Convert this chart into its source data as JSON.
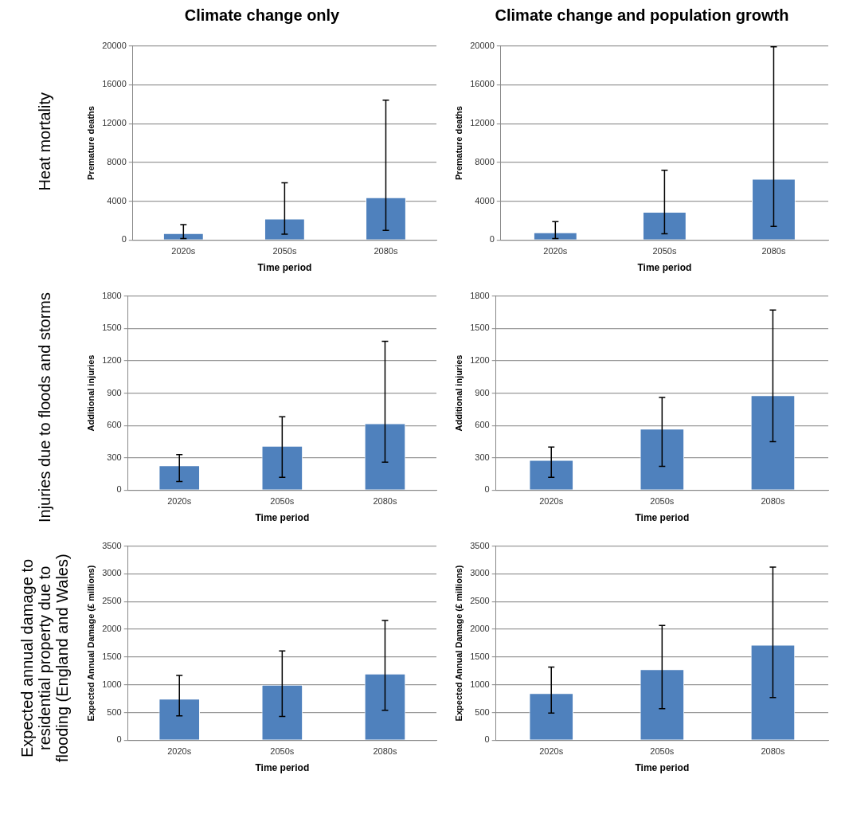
{
  "chart_data": [
    {
      "type": "bar",
      "title": "Climate change only",
      "annotations": [
        "Heat mortality"
      ],
      "xlabel": "Time period",
      "ylabel": "Premature deaths",
      "categories": [
        "2020s",
        "2050s",
        "2080s"
      ],
      "values": [
        700,
        2200,
        4400
      ],
      "errors": [
        [
          150,
          1600
        ],
        [
          600,
          5900
        ],
        [
          1000,
          14400
        ]
      ],
      "color": "#4f81bd",
      "ylim": [
        0,
        20000
      ],
      "yticks": [
        0,
        4000,
        8000,
        12000,
        16000,
        20000
      ],
      "grid": "y",
      "legend": false
    },
    {
      "type": "bar",
      "title": "Climate change and population growth",
      "xlabel": "Time period",
      "ylabel": "Premature deaths",
      "categories": [
        "2020s",
        "2050s",
        "2080s"
      ],
      "values": [
        800,
        2900,
        6300
      ],
      "errors": [
        [
          150,
          1900
        ],
        [
          650,
          7200
        ],
        [
          1400,
          19900
        ]
      ],
      "color": "#4f81bd",
      "ylim": [
        0,
        20000
      ],
      "yticks": [
        0,
        4000,
        8000,
        12000,
        16000,
        20000
      ],
      "grid": "y",
      "legend": false
    },
    {
      "type": "bar",
      "annotations": [
        "Injuries due to floods and storms"
      ],
      "xlabel": "Time period",
      "ylabel": "Additional injuries",
      "categories": [
        "2020s",
        "2050s",
        "2080s"
      ],
      "values": [
        230,
        410,
        620
      ],
      "errors": [
        [
          80,
          330
        ],
        [
          120,
          680
        ],
        [
          260,
          1380
        ]
      ],
      "color": "#4f81bd",
      "ylim": [
        0,
        1800
      ],
      "yticks": [
        0,
        300,
        600,
        900,
        1200,
        1500,
        1800
      ],
      "grid": "y",
      "legend": false
    },
    {
      "type": "bar",
      "xlabel": "Time period",
      "ylabel": "Additional injuries",
      "categories": [
        "2020s",
        "2050s",
        "2080s"
      ],
      "values": [
        280,
        570,
        880
      ],
      "errors": [
        [
          120,
          400
        ],
        [
          220,
          860
        ],
        [
          450,
          1670
        ]
      ],
      "color": "#4f81bd",
      "ylim": [
        0,
        1800
      ],
      "yticks": [
        0,
        300,
        600,
        900,
        1200,
        1500,
        1800
      ],
      "grid": "y",
      "legend": false
    },
    {
      "type": "bar",
      "annotations": [
        "Expected annual damage to residential property due to flooding (England and Wales)"
      ],
      "xlabel": "Time period",
      "ylabel": "Expected Annual Damage (£ millions)",
      "categories": [
        "2020s",
        "2050s",
        "2080s"
      ],
      "values": [
        750,
        1000,
        1200
      ],
      "errors": [
        [
          440,
          1170
        ],
        [
          430,
          1610
        ],
        [
          540,
          2160
        ]
      ],
      "color": "#4f81bd",
      "ylim": [
        0,
        3500
      ],
      "yticks": [
        0,
        500,
        1000,
        1500,
        2000,
        2500,
        3000,
        3500
      ],
      "grid": "y",
      "legend": false
    },
    {
      "type": "bar",
      "xlabel": "Time period",
      "ylabel": "Expected Annual Damage (£ millions)",
      "categories": [
        "2020s",
        "2050s",
        "2080s"
      ],
      "values": [
        850,
        1280,
        1720
      ],
      "errors": [
        [
          490,
          1320
        ],
        [
          570,
          2070
        ],
        [
          770,
          3120
        ]
      ],
      "color": "#4f81bd",
      "ylim": [
        0,
        3500
      ],
      "yticks": [
        0,
        500,
        1000,
        1500,
        2000,
        2500,
        3000,
        3500
      ],
      "grid": "y",
      "legend": false
    }
  ]
}
